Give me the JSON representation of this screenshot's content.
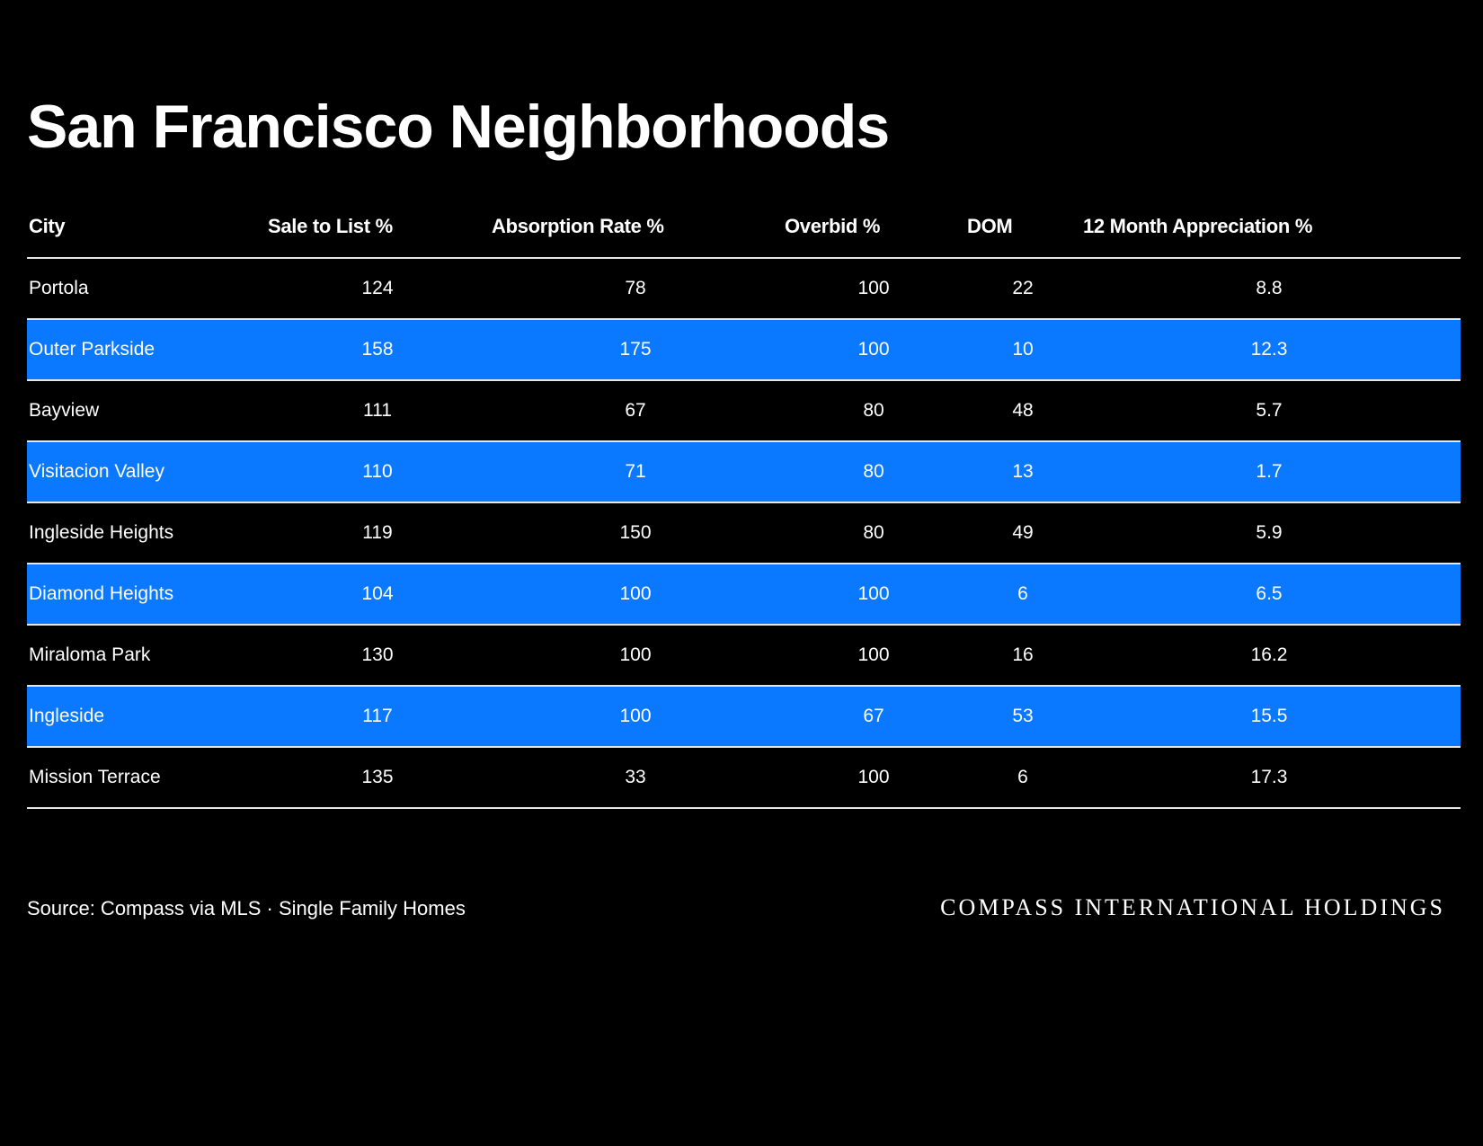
{
  "page": {
    "title": "San Francisco Neighborhoods"
  },
  "table": {
    "columns": [
      "City",
      "Sale to List %",
      "Absorption Rate %",
      "Overbid %",
      "DOM",
      "12 Month Appreciation %"
    ],
    "rows": [
      {
        "city": "Portola",
        "sale_to_list": "124",
        "absorption_rate": "78",
        "overbid": "100",
        "dom": "22",
        "appreciation": "8.8",
        "highlighted": false
      },
      {
        "city": "Outer Parkside",
        "sale_to_list": "158",
        "absorption_rate": "175",
        "overbid": "100",
        "dom": "10",
        "appreciation": "12.3",
        "highlighted": true
      },
      {
        "city": "Bayview",
        "sale_to_list": "111",
        "absorption_rate": "67",
        "overbid": "80",
        "dom": "48",
        "appreciation": "5.7",
        "highlighted": false
      },
      {
        "city": "Visitacion Valley",
        "sale_to_list": "110",
        "absorption_rate": "71",
        "overbid": "80",
        "dom": "13",
        "appreciation": "1.7",
        "highlighted": true
      },
      {
        "city": "Ingleside Heights",
        "sale_to_list": "119",
        "absorption_rate": "150",
        "overbid": "80",
        "dom": "49",
        "appreciation": "5.9",
        "highlighted": false
      },
      {
        "city": "Diamond Heights",
        "sale_to_list": "104",
        "absorption_rate": "100",
        "overbid": "100",
        "dom": "6",
        "appreciation": "6.5",
        "highlighted": true
      },
      {
        "city": "Miraloma Park",
        "sale_to_list": "130",
        "absorption_rate": "100",
        "overbid": "100",
        "dom": "16",
        "appreciation": "16.2",
        "highlighted": false
      },
      {
        "city": "Ingleside",
        "sale_to_list": "117",
        "absorption_rate": "100",
        "overbid": "67",
        "dom": "53",
        "appreciation": "15.5",
        "highlighted": true
      },
      {
        "city": "Mission Terrace",
        "sale_to_list": "135",
        "absorption_rate": "33",
        "overbid": "100",
        "dom": "6",
        "appreciation": "17.3",
        "highlighted": false
      }
    ]
  },
  "footer": {
    "source": "Source: Compass via MLS · Single Family Homes",
    "brand": "COMPASS INTERNATIONAL HOLDINGS"
  },
  "colors": {
    "background": "#000000",
    "text": "#ffffff",
    "highlight_row": "#0a78ff",
    "rule": "#e6e6e6"
  }
}
